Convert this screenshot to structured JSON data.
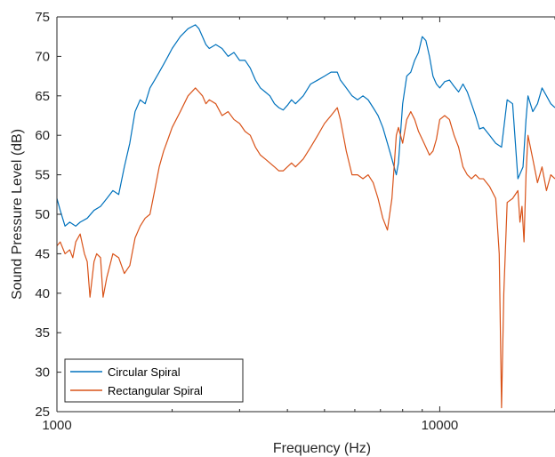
{
  "chart_data": {
    "type": "line",
    "title": "",
    "xlabel": "Frequency (Hz)",
    "ylabel": "Sound Pressure Level (dB)",
    "x_scale": "log",
    "xlim": [
      1000,
      20000
    ],
    "ylim": [
      25,
      75
    ],
    "x_ticks": [
      1000,
      10000
    ],
    "x_tick_labels": [
      "1000",
      "10000"
    ],
    "y_ticks": [
      25,
      30,
      35,
      40,
      45,
      50,
      55,
      60,
      65,
      70,
      75
    ],
    "y_tick_labels": [
      "25",
      "30",
      "35",
      "40",
      "45",
      "50",
      "55",
      "60",
      "65",
      "70",
      "75"
    ],
    "grid": false,
    "legend_position": "bottom-left",
    "series": [
      {
        "name": "Circular Spiral",
        "color": "#0072BD",
        "x": [
          1000,
          1020,
          1050,
          1080,
          1120,
          1150,
          1200,
          1250,
          1300,
          1350,
          1400,
          1450,
          1500,
          1550,
          1600,
          1650,
          1700,
          1750,
          1800,
          1850,
          1900,
          1950,
          2000,
          2100,
          2200,
          2300,
          2350,
          2400,
          2450,
          2500,
          2600,
          2700,
          2800,
          2900,
          3000,
          3100,
          3200,
          3300,
          3400,
          3500,
          3600,
          3700,
          3800,
          3900,
          4000,
          4100,
          4200,
          4400,
          4600,
          4800,
          5000,
          5200,
          5400,
          5500,
          5700,
          5900,
          6100,
          6300,
          6500,
          6700,
          6900,
          7100,
          7300,
          7500,
          7700,
          7800,
          8000,
          8200,
          8400,
          8600,
          8800,
          9000,
          9200,
          9400,
          9600,
          9800,
          10000,
          10300,
          10600,
          10900,
          11200,
          11500,
          11800,
          12100,
          12400,
          12700,
          13000,
          13500,
          14000,
          14500,
          15000,
          15500,
          16000,
          16500,
          16800,
          17000,
          17500,
          18000,
          18500,
          19000,
          19500,
          20000
        ],
        "y": [
          52,
          50.5,
          48.5,
          49,
          48.5,
          49,
          49.5,
          50.5,
          51,
          52,
          53,
          52.5,
          56,
          59,
          63,
          64.5,
          64,
          66,
          67,
          68,
          69,
          70,
          71,
          72.5,
          73.5,
          74,
          73.5,
          72.5,
          71.5,
          71,
          71.5,
          71,
          70,
          70.5,
          69.5,
          69.5,
          68.5,
          67,
          66,
          65.5,
          65,
          64,
          63.5,
          63.2,
          63.8,
          64.5,
          64,
          65,
          66.5,
          67,
          67.5,
          68,
          68,
          67,
          66,
          65,
          64.5,
          65,
          64.5,
          63.5,
          62.5,
          61,
          59,
          57,
          55,
          56.5,
          64,
          67.5,
          68,
          69.5,
          70.5,
          72.5,
          72,
          70,
          67.5,
          66.5,
          66,
          66.8,
          67,
          66.2,
          65.5,
          66.5,
          65.5,
          64,
          62.5,
          60.8,
          61,
          60,
          59,
          58.5,
          64.5,
          64,
          54.5,
          56,
          62,
          65,
          63,
          64,
          66,
          65,
          64,
          63.5
        ]
      },
      {
        "name": "Rectangular Spiral",
        "color": "#D95319",
        "x": [
          1000,
          1020,
          1050,
          1080,
          1100,
          1120,
          1150,
          1180,
          1200,
          1220,
          1250,
          1270,
          1300,
          1320,
          1350,
          1400,
          1450,
          1500,
          1550,
          1600,
          1650,
          1700,
          1750,
          1800,
          1850,
          1900,
          1950,
          2000,
          2100,
          2200,
          2300,
          2350,
          2400,
          2450,
          2500,
          2600,
          2700,
          2800,
          2900,
          3000,
          3100,
          3200,
          3300,
          3400,
          3500,
          3600,
          3700,
          3800,
          3900,
          4000,
          4100,
          4200,
          4400,
          4600,
          4800,
          5000,
          5200,
          5400,
          5500,
          5700,
          5900,
          6100,
          6300,
          6500,
          6700,
          6900,
          7100,
          7300,
          7500,
          7700,
          7800,
          8000,
          8200,
          8400,
          8600,
          8800,
          9000,
          9200,
          9400,
          9600,
          9800,
          10000,
          10300,
          10600,
          10900,
          11200,
          11500,
          11800,
          12100,
          12400,
          12700,
          13000,
          13500,
          14000,
          14300,
          14500,
          14700,
          15000,
          15500,
          16000,
          16200,
          16400,
          16600,
          16800,
          17000,
          17500,
          18000,
          18500,
          19000,
          19500,
          20000
        ],
        "y": [
          46,
          46.5,
          45,
          45.5,
          44.5,
          46.5,
          47.5,
          45,
          44,
          39.5,
          44,
          45,
          44.5,
          39.5,
          42,
          45,
          44.5,
          42.5,
          43.5,
          47,
          48.5,
          49.5,
          50,
          53,
          56,
          58,
          59.5,
          61,
          63,
          65,
          66,
          65.5,
          65,
          64,
          64.5,
          64,
          62.5,
          63,
          62,
          61.5,
          60.5,
          60,
          58.5,
          57.5,
          57,
          56.5,
          56,
          55.5,
          55.5,
          56,
          56.5,
          56,
          57,
          58.5,
          60,
          61.5,
          62.5,
          63.5,
          62,
          58,
          55,
          55,
          54.5,
          55,
          54,
          52,
          49.5,
          48,
          52,
          60,
          61,
          59,
          62,
          63,
          62,
          60.5,
          59.5,
          58.5,
          57.5,
          58,
          59.5,
          62,
          62.5,
          62,
          60,
          58.5,
          56,
          55,
          54.5,
          55,
          54.5,
          54.5,
          53.5,
          52,
          45,
          25.5,
          40,
          51.5,
          52,
          53,
          49,
          51,
          46.5,
          55,
          60,
          57,
          54,
          56,
          53,
          55,
          54.5
        ]
      }
    ]
  },
  "legend": {
    "entries": [
      "Circular Spiral",
      "Rectangular Spiral"
    ]
  }
}
